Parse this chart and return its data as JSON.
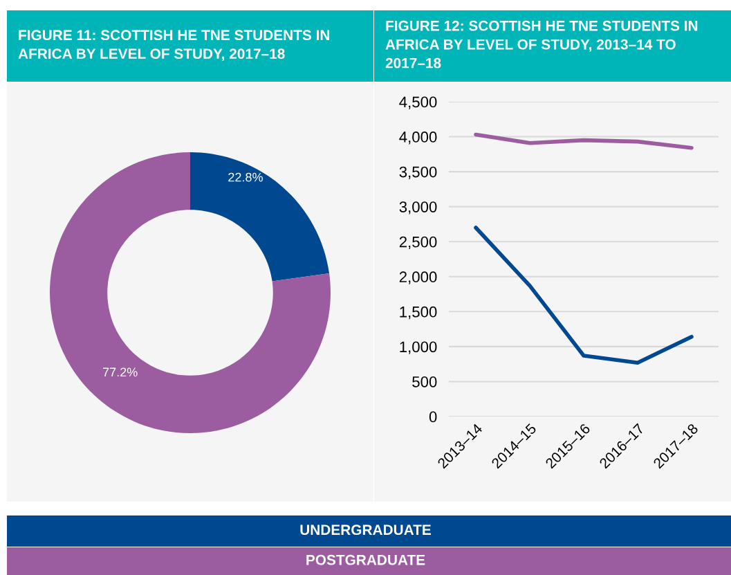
{
  "chart_data": [
    {
      "type": "donut",
      "title": "FIGURE 11: SCOTTISH HE TNE STUDENTS IN\nAFRICA BY LEVEL OF STUDY, 2017–18",
      "categories": [
        null,
        null
      ],
      "values": [
        22.8,
        77.2
      ],
      "colors": [
        "#004990",
        "#9b5da0"
      ],
      "value_labels": [
        "22.8%",
        "77.2%"
      ]
    },
    {
      "type": "line",
      "title": "FIGURE 12: SCOTTISH HE TNE STUDENTS IN\nAFRICA BY LEVEL OF STUDY, 2013–14 TO\n2017–18",
      "categories": [
        "2013–14",
        "2014–15",
        "2015–16",
        "2016–17",
        "2017–18"
      ],
      "series": [
        {
          "name": "UNDERGRADUATE",
          "color": "#004990",
          "values": [
            2700,
            1870,
            870,
            770,
            1140
          ]
        },
        {
          "name": "POSTGRADUATE",
          "color": "#9b5da0",
          "values": [
            4030,
            3910,
            3950,
            3930,
            3840
          ]
        }
      ],
      "ylim": [
        0,
        4500
      ],
      "yticks": [
        {
          "value": 0,
          "label": "0"
        },
        {
          "value": 500,
          "label": "500"
        },
        {
          "value": 1000,
          "label": "1,000"
        },
        {
          "value": 1500,
          "label": "1,500"
        },
        {
          "value": 2000,
          "label": "2,000"
        },
        {
          "value": 2500,
          "label": "2,500"
        },
        {
          "value": 3000,
          "label": "3,000"
        },
        {
          "value": 3500,
          "label": "3,500"
        },
        {
          "value": 4000,
          "label": "4,000"
        },
        {
          "value": 4500,
          "label": "4,500"
        }
      ],
      "grid": "y",
      "legend": "bottom",
      "marker": "none",
      "line_style": "solid"
    }
  ]
}
